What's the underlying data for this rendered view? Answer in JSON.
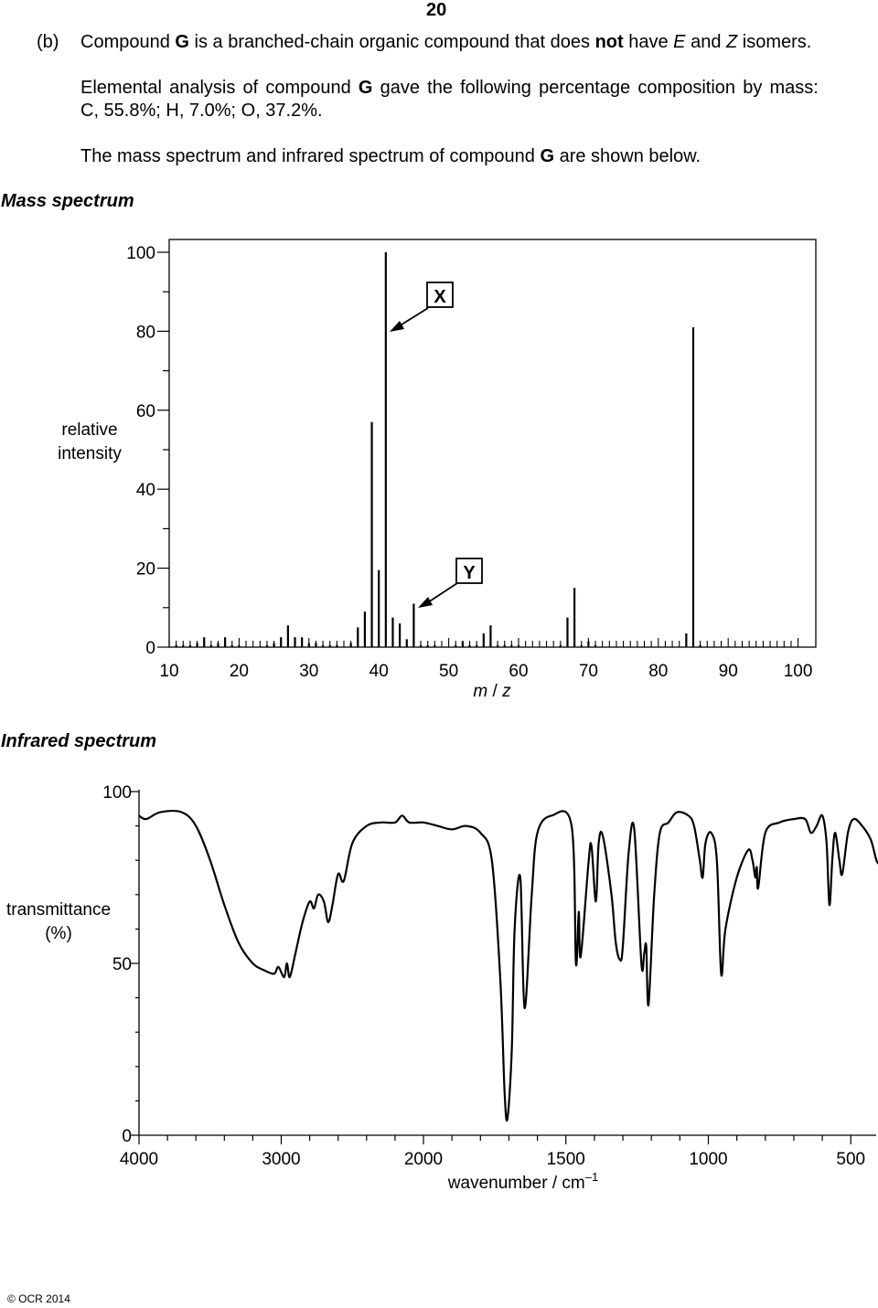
{
  "page_number": "20",
  "question": {
    "part_label": "(b)",
    "intro": {
      "t1": "Compound ",
      "compound": "G",
      "t2": " is a branched-chain organic compound that does ",
      "not": "not",
      "t3": " have ",
      "e": "E",
      "t4": " and ",
      "z": "Z",
      "t5": " isomers."
    },
    "analysis": {
      "t1": "Elemental analysis of compound ",
      "compound": "G",
      "t2": " gave the following percentage composition by mass:",
      "line2": "C, 55.8%; H, 7.0%; O, 37.2%."
    },
    "spectra_intro": {
      "t1": "The mass spectrum and infrared spectrum of compound ",
      "compound": "G",
      "t2": " are shown below."
    }
  },
  "mass_spectrum": {
    "heading": "Mass spectrum",
    "ylabel_line1": "relative",
    "ylabel_line2": "intensity",
    "y_ticks": [
      "0",
      "20",
      "40",
      "60",
      "80",
      "100"
    ],
    "x_ticks": [
      "10",
      "20",
      "30",
      "40",
      "50",
      "60",
      "70",
      "80",
      "90",
      "100"
    ],
    "xlabel_m": "m",
    "xlabel_slash": " / ",
    "xlabel_z": "z",
    "labels": {
      "x": "X",
      "y": "Y"
    }
  },
  "infrared_spectrum": {
    "heading": "Infrared spectrum",
    "ylabel_line1": "transmittance",
    "ylabel_line2": "(%)",
    "y_ticks": [
      "0",
      "50",
      "100"
    ],
    "x_ticks": [
      "4000",
      "3000",
      "2000",
      "1500",
      "1000",
      "500"
    ],
    "xlabel": "wavenumber / cm",
    "xlabel_sup": "–1"
  },
  "footer": {
    "copyright": "© OCR 2014"
  },
  "chart_data": [
    {
      "type": "bar",
      "xlabel": "m / z",
      "ylabel": "relative intensity",
      "xlim": [
        10,
        100
      ],
      "ylim": [
        0,
        100
      ],
      "x": [
        11,
        12,
        13,
        14,
        15,
        16,
        17,
        18,
        19,
        20,
        24,
        25,
        26,
        27,
        28,
        29,
        30,
        31,
        32,
        33,
        34,
        36,
        37,
        38,
        39,
        40,
        41,
        42,
        43,
        44,
        45,
        46,
        47,
        48,
        51,
        52,
        53,
        54,
        55,
        56,
        57,
        58,
        59,
        60,
        66,
        67,
        68,
        69,
        70,
        71,
        84,
        85,
        86
      ],
      "values": [
        0.5,
        0.5,
        0.5,
        1,
        2.5,
        0.5,
        1,
        2.5,
        0.5,
        0.5,
        0.5,
        1,
        2.5,
        5.5,
        2.5,
        2.5,
        1,
        1,
        0.5,
        0.5,
        0.5,
        1,
        5,
        9,
        57,
        19.5,
        100,
        7.5,
        6,
        2,
        11,
        0.5,
        0.5,
        0.5,
        0.5,
        1.5,
        0.5,
        0.5,
        3.5,
        5.5,
        0.5,
        0.5,
        0.5,
        0.5,
        0.5,
        7.5,
        15,
        0.5,
        1.5,
        0.5,
        3.5,
        81,
        0.5
      ],
      "annotations": [
        {
          "text": "X",
          "x": 41,
          "y": 80
        },
        {
          "text": "Y",
          "x": 45,
          "y": 11
        }
      ]
    },
    {
      "type": "line",
      "xlabel": "wavenumber / cm–1",
      "ylabel": "transmittance (%)",
      "xlim": [
        4000,
        400
      ],
      "ylim": [
        0,
        100
      ],
      "x_axis_scale": "piecewise: 4000–2000 compressed, 2000–400 expanded",
      "series": [
        {
          "points": [
            [
              4000,
              93
            ],
            [
              3950,
              92
            ],
            [
              3850,
              94
            ],
            [
              3700,
              94
            ],
            [
              3600,
              90
            ],
            [
              3500,
              80
            ],
            [
              3400,
              67
            ],
            [
              3300,
              56
            ],
            [
              3200,
              50
            ],
            [
              3120,
              48
            ],
            [
              3050,
              47
            ],
            [
              3020,
              49
            ],
            [
              2980,
              46
            ],
            [
              2960,
              50
            ],
            [
              2940,
              46
            ],
            [
              2900,
              53
            ],
            [
              2850,
              62
            ],
            [
              2800,
              68
            ],
            [
              2770,
              66
            ],
            [
              2740,
              70
            ],
            [
              2700,
              68
            ],
            [
              2670,
              62
            ],
            [
              2640,
              67
            ],
            [
              2600,
              76
            ],
            [
              2560,
              74
            ],
            [
              2500,
              85
            ],
            [
              2400,
              90
            ],
            [
              2300,
              91
            ],
            [
              2200,
              91
            ],
            [
              2150,
              93
            ],
            [
              2100,
              91
            ],
            [
              2000,
              91
            ],
            [
              1950,
              90
            ],
            [
              1900,
              89
            ],
            [
              1850,
              90
            ],
            [
              1800,
              88
            ],
            [
              1760,
              80
            ],
            [
              1730,
              45
            ],
            [
              1715,
              12
            ],
            [
              1705,
              5
            ],
            [
              1690,
              25
            ],
            [
              1680,
              60
            ],
            [
              1660,
              75
            ],
            [
              1645,
              37
            ],
            [
              1620,
              70
            ],
            [
              1600,
              88
            ],
            [
              1550,
              93
            ],
            [
              1480,
              90
            ],
            [
              1465,
              50
            ],
            [
              1455,
              65
            ],
            [
              1448,
              52
            ],
            [
              1420,
              80
            ],
            [
              1410,
              84
            ],
            [
              1395,
              68
            ],
            [
              1385,
              85
            ],
            [
              1370,
              87
            ],
            [
              1340,
              70
            ],
            [
              1325,
              56
            ],
            [
              1310,
              51
            ],
            [
              1300,
              55
            ],
            [
              1280,
              82
            ],
            [
              1260,
              89
            ],
            [
              1235,
              50
            ],
            [
              1225,
              53
            ],
            [
              1218,
              55
            ],
            [
              1210,
              38
            ],
            [
              1190,
              70
            ],
            [
              1170,
              88
            ],
            [
              1140,
              91
            ],
            [
              1110,
              94
            ],
            [
              1070,
              93
            ],
            [
              1050,
              90
            ],
            [
              1030,
              80
            ],
            [
              1020,
              75
            ],
            [
              1010,
              85
            ],
            [
              990,
              88
            ],
            [
              970,
              80
            ],
            [
              955,
              47
            ],
            [
              940,
              60
            ],
            [
              900,
              75
            ],
            [
              860,
              83
            ],
            [
              845,
              80
            ],
            [
              835,
              75
            ],
            [
              830,
              78
            ],
            [
              825,
              72
            ],
            [
              800,
              88
            ],
            [
              750,
              91
            ],
            [
              700,
              92
            ],
            [
              660,
              92
            ],
            [
              640,
              88
            ],
            [
              620,
              90
            ],
            [
              600,
              93
            ],
            [
              585,
              85
            ],
            [
              575,
              67
            ],
            [
              565,
              80
            ],
            [
              555,
              88
            ],
            [
              540,
              80
            ],
            [
              530,
              76
            ],
            [
              510,
              88
            ],
            [
              490,
              92
            ],
            [
              460,
              90
            ],
            [
              430,
              86
            ],
            [
              410,
              80
            ],
            [
              400,
              79
            ]
          ]
        }
      ]
    }
  ]
}
